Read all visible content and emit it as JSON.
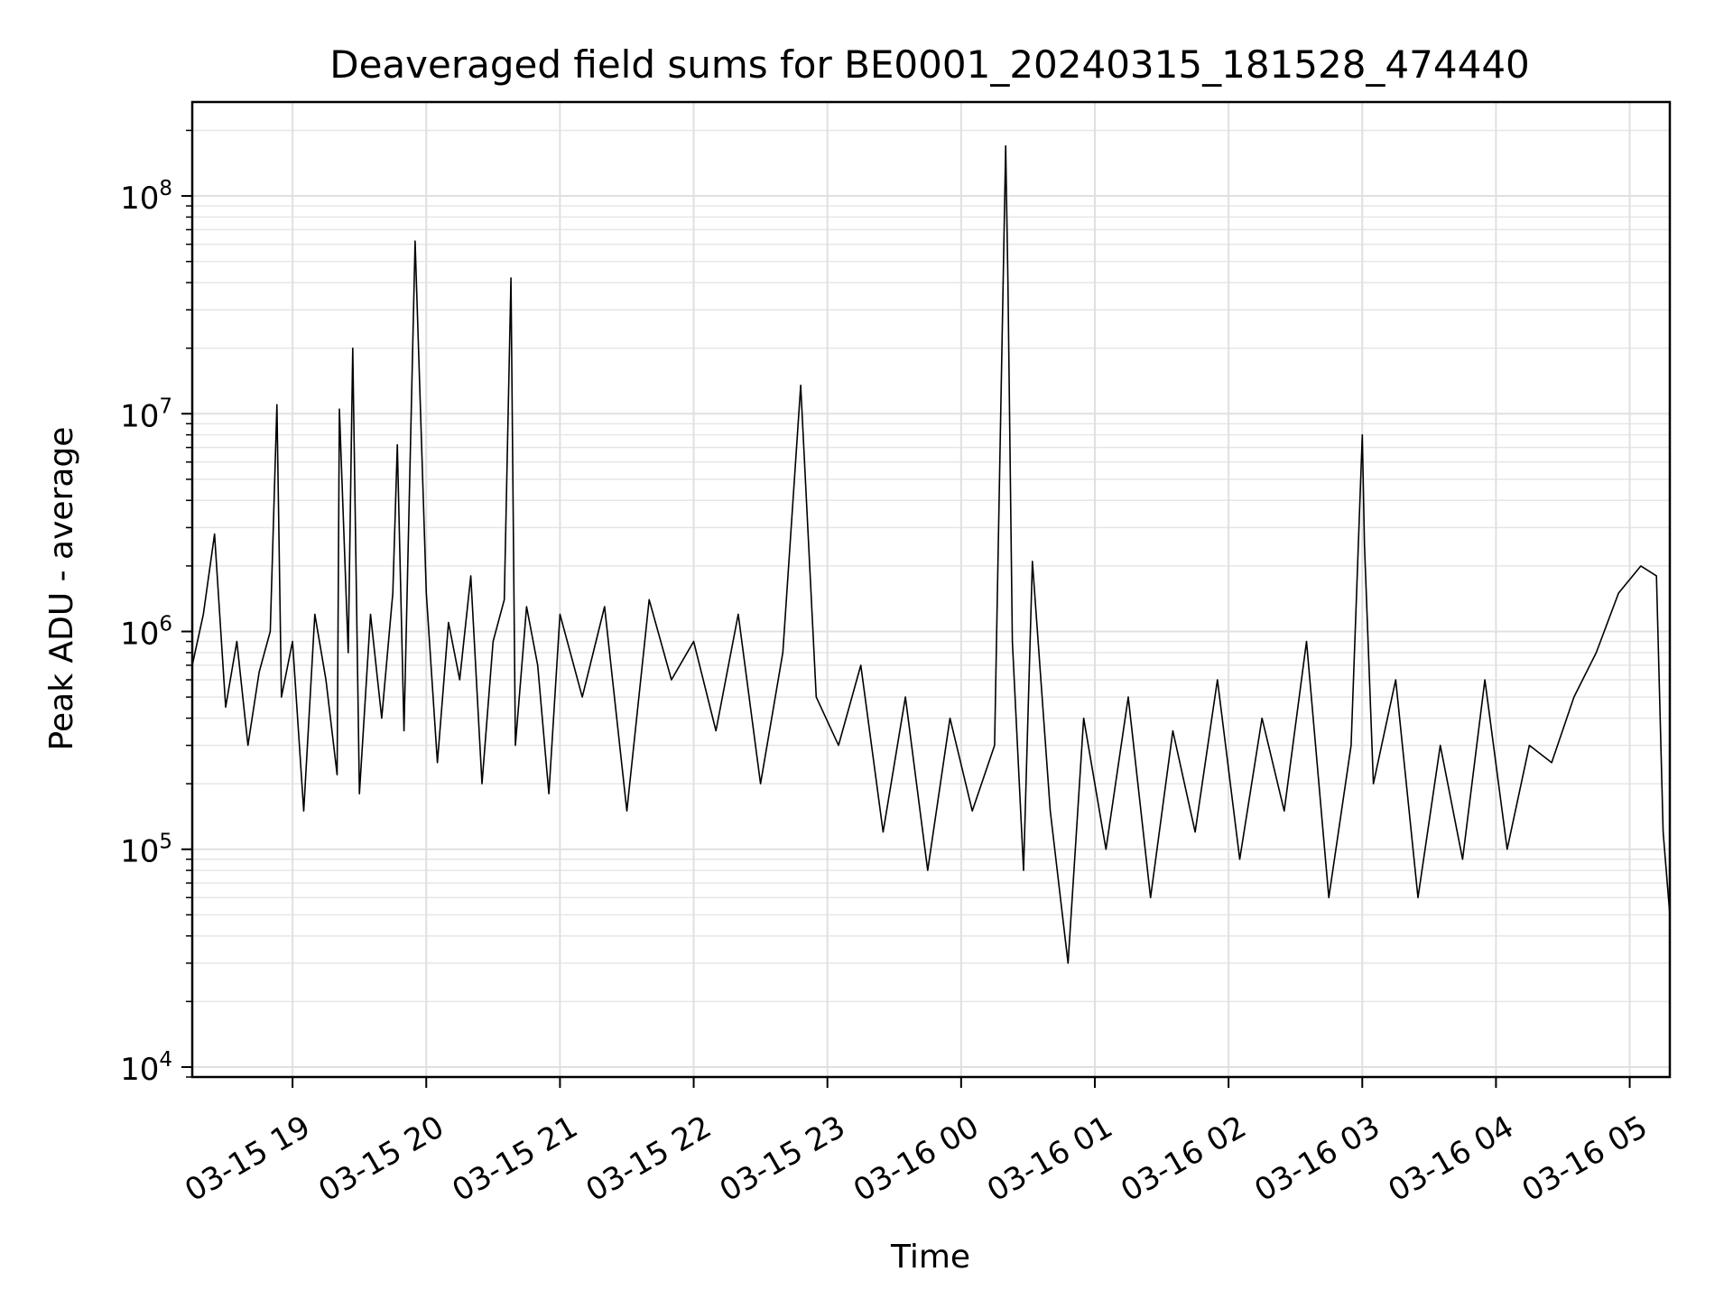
{
  "chart_data": {
    "type": "line",
    "title": "Deaveraged field sums for BE0001_20240315_181528_474440",
    "xlabel": "Time",
    "ylabel": "Peak ADU - average",
    "y_scale": "log",
    "ylim": [
      9000,
      270000000
    ],
    "xlim": [
      "2024-03-15 18:15",
      "2024-03-16 05:18"
    ],
    "grid": true,
    "line_color": "#000000",
    "x_tick_labels": [
      "03-15 19",
      "03-15 20",
      "03-15 21",
      "03-15 22",
      "03-15 23",
      "03-16 00",
      "03-16 01",
      "03-16 02",
      "03-16 03",
      "03-16 04",
      "03-16 05"
    ],
    "x_tick_times": [
      "2024-03-15 19:00",
      "2024-03-15 20:00",
      "2024-03-15 21:00",
      "2024-03-15 22:00",
      "2024-03-15 23:00",
      "2024-03-16 00:00",
      "2024-03-16 01:00",
      "2024-03-16 02:00",
      "2024-03-16 03:00",
      "2024-03-16 04:00",
      "2024-03-16 05:00"
    ],
    "y_ticks": [
      {
        "value": 10000,
        "base": "10",
        "exp": "4"
      },
      {
        "value": 100000,
        "base": "10",
        "exp": "5"
      },
      {
        "value": 1000000,
        "base": "10",
        "exp": "6"
      },
      {
        "value": 10000000,
        "base": "10",
        "exp": "7"
      },
      {
        "value": 100000000,
        "base": "10",
        "exp": "8"
      }
    ],
    "series": [
      {
        "x": [
          "2024-03-15 18:15",
          "2024-03-15 18:20",
          "2024-03-15 18:25",
          "2024-03-15 18:30",
          "2024-03-15 18:35",
          "2024-03-15 18:40",
          "2024-03-15 18:45",
          "2024-03-15 18:50",
          "2024-03-15 18:53",
          "2024-03-15 18:55",
          "2024-03-15 19:00",
          "2024-03-15 19:05",
          "2024-03-15 19:10",
          "2024-03-15 19:15",
          "2024-03-15 19:20",
          "2024-03-15 19:21",
          "2024-03-15 19:25",
          "2024-03-15 19:27",
          "2024-03-15 19:30",
          "2024-03-15 19:35",
          "2024-03-15 19:40",
          "2024-03-15 19:45",
          "2024-03-15 19:47",
          "2024-03-15 19:50",
          "2024-03-15 19:55",
          "2024-03-15 20:00",
          "2024-03-15 20:05",
          "2024-03-15 20:10",
          "2024-03-15 20:15",
          "2024-03-15 20:20",
          "2024-03-15 20:25",
          "2024-03-15 20:30",
          "2024-03-15 20:35",
          "2024-03-15 20:38",
          "2024-03-15 20:40",
          "2024-03-15 20:45",
          "2024-03-15 20:50",
          "2024-03-15 20:55",
          "2024-03-15 21:00",
          "2024-03-15 21:10",
          "2024-03-15 21:20",
          "2024-03-15 21:30",
          "2024-03-15 21:40",
          "2024-03-15 21:50",
          "2024-03-15 22:00",
          "2024-03-15 22:10",
          "2024-03-15 22:20",
          "2024-03-15 22:30",
          "2024-03-15 22:40",
          "2024-03-15 22:48",
          "2024-03-15 22:55",
          "2024-03-15 23:05",
          "2024-03-15 23:15",
          "2024-03-15 23:25",
          "2024-03-15 23:35",
          "2024-03-15 23:45",
          "2024-03-15 23:55",
          "2024-03-16 00:05",
          "2024-03-16 00:15",
          "2024-03-16 00:20",
          "2024-03-16 00:21",
          "2024-03-16 00:23",
          "2024-03-16 00:28",
          "2024-03-16 00:32",
          "2024-03-16 00:40",
          "2024-03-16 00:48",
          "2024-03-16 00:55",
          "2024-03-16 01:05",
          "2024-03-16 01:15",
          "2024-03-16 01:25",
          "2024-03-16 01:35",
          "2024-03-16 01:45",
          "2024-03-16 01:55",
          "2024-03-16 02:05",
          "2024-03-16 02:15",
          "2024-03-16 02:25",
          "2024-03-16 02:35",
          "2024-03-16 02:45",
          "2024-03-16 02:55",
          "2024-03-16 03:00",
          "2024-03-16 03:01",
          "2024-03-16 03:05",
          "2024-03-16 03:15",
          "2024-03-16 03:25",
          "2024-03-16 03:35",
          "2024-03-16 03:45",
          "2024-03-16 03:55",
          "2024-03-16 04:05",
          "2024-03-16 04:15",
          "2024-03-16 04:25",
          "2024-03-16 04:35",
          "2024-03-16 04:45",
          "2024-03-16 04:55",
          "2024-03-16 05:05",
          "2024-03-16 05:12",
          "2024-03-16 05:15",
          "2024-03-16 05:18"
        ],
        "values": [
          700000,
          1200000,
          2800000,
          450000,
          900000,
          300000,
          650000,
          1000000,
          11000000,
          500000,
          900000,
          150000,
          1200000,
          600000,
          220000,
          10500000,
          800000,
          20000000,
          180000,
          1200000,
          400000,
          1500000,
          7200000,
          350000,
          62000000,
          1500000,
          250000,
          1100000,
          600000,
          1800000,
          200000,
          900000,
          1400000,
          42000000,
          300000,
          1300000,
          700000,
          180000,
          1200000,
          500000,
          1300000,
          150000,
          1400000,
          600000,
          900000,
          350000,
          1200000,
          200000,
          800000,
          13500000,
          500000,
          300000,
          700000,
          120000,
          500000,
          80000,
          400000,
          150000,
          300000,
          170000000,
          40000000,
          900000,
          80000,
          2100000,
          150000,
          30000,
          400000,
          100000,
          500000,
          60000,
          350000,
          120000,
          600000,
          90000,
          400000,
          150000,
          900000,
          60000,
          300000,
          8000000,
          2500000,
          200000,
          600000,
          60000,
          300000,
          90000,
          600000,
          100000,
          300000,
          250000,
          500000,
          800000,
          1500000,
          2000000,
          1800000,
          120000,
          50000
        ]
      }
    ]
  }
}
